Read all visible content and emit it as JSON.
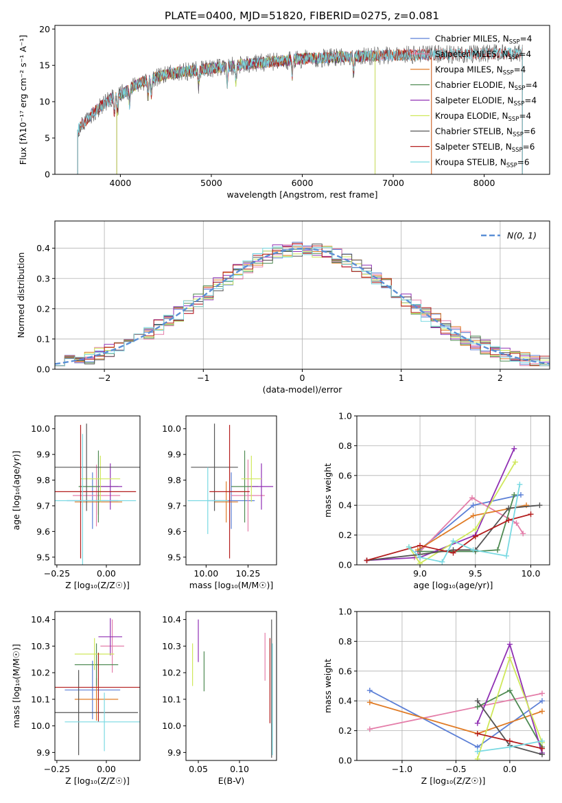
{
  "figure_title": "PLATE=0400, MJD=51820, FIBERID=0275, z=0.081",
  "colors": {
    "Chabrier MILES": "#5b7fd6",
    "Salpeter MILES": "#e47da9",
    "Kroupa MILES": "#e07b25",
    "Chabrier ELODIE": "#4e8a52",
    "Salpeter ELODIE": "#8f2fb3",
    "Kroupa ELODIE": "#cfe85a",
    "Chabrier STELIB": "#555555",
    "Salpeter STELIB": "#b31d1d",
    "Kroupa STELIB": "#79d9e2",
    "gauss": "#5b8fd6"
  },
  "chart_data": [
    {
      "id": "spectrum",
      "type": "line",
      "title": "PLATE=0400, MJD=51820, FIBERID=0275, z=0.081",
      "xlabel": "wavelength [Angstrom, rest frame]",
      "ylabel": "Flux [fλ10⁻¹⁷ erg cm⁻² s⁻¹ A⁻¹]",
      "xlim": [
        3280,
        8720
      ],
      "ylim": [
        0,
        20.5
      ],
      "xticks": [
        "4000",
        "5000",
        "6000",
        "7000",
        "8000"
      ],
      "yticks": [
        "0",
        "5",
        "10",
        "15",
        "20"
      ],
      "grid": false,
      "legend_position": "right",
      "continuum": {
        "x": [
          3520,
          3700,
          3900,
          4000,
          4200,
          4500,
          5000,
          5500,
          6000,
          6500,
          7000,
          7500,
          8000,
          8420
        ],
        "y": [
          6.0,
          8.5,
          10.5,
          11.0,
          12.5,
          13.8,
          14.6,
          15.3,
          15.9,
          16.2,
          16.4,
          16.5,
          16.6,
          16.7
        ]
      },
      "series": [
        {
          "name": "Chabrier MILES, N_SSP=4",
          "x0": 3530,
          "x1": 7420
        },
        {
          "name": "Salpeter MILES, N_SSP=4",
          "x0": 3530,
          "x1": 7420
        },
        {
          "name": "Kroupa MILES, N_SSP=4",
          "x0": 3530,
          "x1": 7420
        },
        {
          "name": "Chabrier ELODIE, N_SSP=4",
          "x0": 3960,
          "x1": 6800
        },
        {
          "name": "Salpeter ELODIE, N_SSP=4",
          "x0": 3960,
          "x1": 6800
        },
        {
          "name": "Kroupa ELODIE, N_SSP=4",
          "x0": 3960,
          "x1": 6800
        },
        {
          "name": "Chabrier STELIB, N_SSP=6",
          "x0": 3530,
          "x1": 8420
        },
        {
          "name": "Salpeter STELIB, N_SSP=6",
          "x0": 3530,
          "x1": 8420
        },
        {
          "name": "Kroupa STELIB, N_SSP=6",
          "x0": 3530,
          "x1": 8420
        }
      ]
    },
    {
      "id": "residuals",
      "type": "line",
      "xlabel": "(data-model)/error",
      "ylabel": "Normed distribution",
      "xlim": [
        -2.5,
        2.5
      ],
      "ylim": [
        0,
        0.49
      ],
      "xticks": [
        "−2",
        "−1",
        "0",
        "1",
        "2"
      ],
      "yticks": [
        "0.0",
        "0.1",
        "0.2",
        "0.3",
        "0.4"
      ],
      "grid": true,
      "legend": "N(0, 1)",
      "legend_position": "top-right",
      "bin_width": 0.1
    },
    {
      "id": "age_vs_Z",
      "type": "scatter",
      "xlabel": "Z [log₁₀(Z/Z☉)]",
      "ylabel": "age  [log₁₀(age/yr)]",
      "xlim": [
        -0.26,
        0.17
      ],
      "ylim": [
        9.47,
        10.05
      ],
      "xticks": [
        "−0.25",
        "0.00"
      ],
      "yticks": [
        "9.5",
        "9.6",
        "9.7",
        "9.8",
        "9.9",
        "10.0"
      ],
      "grid": false,
      "points": [
        {
          "x": -0.07,
          "xerr": 0.13,
          "y": 9.72,
          "yerr": 0.11,
          "series": "Chabrier MILES"
        },
        {
          "x": -0.05,
          "xerr": 0.12,
          "y": 9.74,
          "yerr": 0.12,
          "series": "Salpeter MILES"
        },
        {
          "x": -0.04,
          "xerr": 0.12,
          "y": 9.715,
          "yerr": 0.05,
          "series": "Kroupa MILES"
        },
        {
          "x": -0.04,
          "xerr": 0.1,
          "y": 9.775,
          "yerr": 0.14,
          "series": "Chabrier ELODIE"
        },
        {
          "x": 0.02,
          "xerr": 0.06,
          "y": 9.775,
          "yerr": 0.09,
          "series": "Salpeter ELODIE"
        },
        {
          "x": -0.03,
          "xerr": 0.1,
          "y": 9.805,
          "yerr": 0.09,
          "series": "Kroupa ELODIE"
        },
        {
          "x": -0.1,
          "xerr": 0.28,
          "y": 9.85,
          "yerr": 0.17,
          "series": "Chabrier STELIB"
        },
        {
          "x": -0.13,
          "xerr": 0.28,
          "y": 9.755,
          "yerr": 0.26,
          "series": "Salpeter STELIB"
        },
        {
          "x": -0.12,
          "xerr": 0.27,
          "y": 9.72,
          "yerr": 0.26,
          "series": "Kroupa STELIB"
        }
      ]
    },
    {
      "id": "age_vs_mass",
      "type": "scatter",
      "xlabel": "mass [log₁₀(M/M☉)]",
      "xlim": [
        9.88,
        10.42
      ],
      "ylim": [
        9.47,
        10.05
      ],
      "xticks": [
        "10.00",
        "10.25"
      ],
      "yticks": [
        "9.5",
        "9.6",
        "9.7",
        "9.8",
        "9.9",
        "10.0"
      ],
      "grid": false,
      "points": [
        {
          "x": 10.15,
          "xerr": 0.14,
          "y": 9.72,
          "yerr": 0.11,
          "series": "Chabrier MILES"
        },
        {
          "x": 10.25,
          "xerr": 0.1,
          "y": 9.74,
          "yerr": 0.14,
          "series": "Salpeter MILES"
        },
        {
          "x": 10.12,
          "xerr": 0.07,
          "y": 9.715,
          "yerr": 0.08,
          "series": "Kroupa MILES"
        },
        {
          "x": 10.23,
          "xerr": 0.08,
          "y": 9.775,
          "yerr": 0.14,
          "series": "Chabrier ELODIE"
        },
        {
          "x": 10.33,
          "xerr": 0.07,
          "y": 9.775,
          "yerr": 0.09,
          "series": "Salpeter ELODIE"
        },
        {
          "x": 10.27,
          "xerr": 0.06,
          "y": 9.805,
          "yerr": 0.09,
          "series": "Kroupa ELODIE"
        },
        {
          "x": 10.05,
          "xerr": 0.14,
          "y": 9.85,
          "yerr": 0.17,
          "series": "Chabrier STELIB"
        },
        {
          "x": 10.14,
          "xerr": 0.12,
          "y": 9.755,
          "yerr": 0.26,
          "series": "Salpeter STELIB"
        },
        {
          "x": 10.01,
          "xerr": 0.12,
          "y": 9.72,
          "yerr": 0.13,
          "series": "Kroupa STELIB"
        }
      ]
    },
    {
      "id": "weight_vs_age",
      "type": "line",
      "xlabel": "age  [log₁₀(age/yr)]",
      "ylabel": "mass weight",
      "xlim": [
        8.43,
        10.17
      ],
      "ylim": [
        0,
        1
      ],
      "xticks": [
        "9.0",
        "9.5",
        "10.0"
      ],
      "yticks": [
        "0.0",
        "0.2",
        "0.4",
        "0.6",
        "0.8",
        "1.0"
      ],
      "grid": true,
      "series": [
        {
          "name": "Chabrier MILES",
          "x": [
            8.98,
            9.48,
            9.91
          ],
          "y": [
            0.09,
            0.4,
            0.47
          ]
        },
        {
          "name": "Salpeter MILES",
          "x": [
            8.95,
            9.47,
            9.87,
            9.93
          ],
          "y": [
            0.05,
            0.45,
            0.28,
            0.21
          ]
        },
        {
          "name": "Kroupa MILES",
          "x": [
            8.98,
            9.48,
            9.96
          ],
          "y": [
            0.1,
            0.33,
            0.4
          ]
        },
        {
          "name": "Chabrier ELODIE",
          "x": [
            9.0,
            9.5,
            9.7,
            9.85
          ],
          "y": [
            0.09,
            0.09,
            0.1,
            0.47
          ]
        },
        {
          "name": "Salpeter ELODIE",
          "x": [
            8.52,
            9.0,
            9.5,
            9.85
          ],
          "y": [
            0.03,
            0.05,
            0.2,
            0.78
          ]
        },
        {
          "name": "Kroupa ELODIE",
          "x": [
            8.9,
            9.0,
            9.5,
            9.86
          ],
          "y": [
            0.12,
            0.01,
            0.24,
            0.69
          ]
        },
        {
          "name": "Chabrier STELIB",
          "x": [
            8.52,
            9.0,
            9.3,
            9.5,
            9.8,
            10.08
          ],
          "y": [
            0.03,
            0.07,
            0.1,
            0.1,
            0.38,
            0.4
          ]
        },
        {
          "name": "Salpeter STELIB",
          "x": [
            8.52,
            9.0,
            9.3,
            9.5,
            9.8,
            10.0
          ],
          "y": [
            0.03,
            0.13,
            0.08,
            0.19,
            0.3,
            0.34
          ]
        },
        {
          "name": "Kroupa STELIB",
          "x": [
            8.9,
            9.0,
            9.2,
            9.3,
            9.48,
            9.78,
            9.9
          ],
          "y": [
            0.12,
            0.05,
            0.02,
            0.16,
            0.1,
            0.06,
            0.54
          ]
        }
      ]
    },
    {
      "id": "mass_vs_Z",
      "type": "scatter",
      "xlabel": "Z [log₁₀(Z/Z☉)]",
      "ylabel": "mass [log₁₀(M/M☉)]",
      "xlim": [
        -0.26,
        0.17
      ],
      "ylim": [
        9.87,
        10.43
      ],
      "xticks": [
        "−0.25",
        "0.00"
      ],
      "yticks": [
        "9.9",
        "10.0",
        "10.1",
        "10.2",
        "10.3",
        "10.4"
      ],
      "grid": false,
      "points": [
        {
          "x": -0.07,
          "xerr": 0.14,
          "y": 10.135,
          "yerr": 0.11,
          "series": "Chabrier MILES"
        },
        {
          "x": 0.03,
          "xerr": 0.06,
          "y": 10.3,
          "yerr": 0.1,
          "series": "Salpeter MILES"
        },
        {
          "x": -0.05,
          "xerr": 0.11,
          "y": 10.1,
          "yerr": 0.08,
          "series": "Kroupa MILES"
        },
        {
          "x": -0.05,
          "xerr": 0.11,
          "y": 10.23,
          "yerr": 0.08,
          "series": "Chabrier ELODIE"
        },
        {
          "x": 0.02,
          "xerr": 0.06,
          "y": 10.335,
          "yerr": 0.07,
          "series": "Salpeter ELODIE"
        },
        {
          "x": -0.06,
          "xerr": 0.1,
          "y": 10.27,
          "yerr": 0.06,
          "series": "Kroupa ELODIE"
        },
        {
          "x": -0.14,
          "xerr": 0.3,
          "y": 10.05,
          "yerr": 0.16,
          "series": "Chabrier STELIB"
        },
        {
          "x": -0.04,
          "xerr": 0.25,
          "y": 10.145,
          "yerr": 0.13,
          "series": "Salpeter STELIB"
        },
        {
          "x": -0.01,
          "xerr": 0.2,
          "y": 10.015,
          "yerr": 0.11,
          "series": "Kroupa STELIB"
        }
      ]
    },
    {
      "id": "mass_vs_EBV",
      "type": "scatter",
      "xlabel": "E(B-V)",
      "xlim": [
        0.035,
        0.145
      ],
      "ylim": [
        9.87,
        10.43
      ],
      "xticks": [
        "0.05",
        "0.10"
      ],
      "yticks": [
        "9.9",
        "10.0",
        "10.1",
        "10.2",
        "10.3",
        "10.4"
      ],
      "grid": false,
      "points": [
        {
          "x": 0.131,
          "y": 10.26,
          "yerr": 0.09,
          "series": "Salpeter MILES"
        },
        {
          "x": 0.057,
          "y": 10.205,
          "yerr": 0.075,
          "series": "Chabrier ELODIE"
        },
        {
          "x": 0.05,
          "y": 10.32,
          "yerr": 0.08,
          "series": "Salpeter ELODIE"
        },
        {
          "x": 0.043,
          "y": 10.23,
          "yerr": 0.08,
          "series": "Kroupa ELODIE"
        },
        {
          "x": 0.139,
          "y": 10.14,
          "yerr": 0.26,
          "series": "Chabrier STELIB"
        },
        {
          "x": 0.137,
          "y": 10.17,
          "yerr": 0.16,
          "series": "Salpeter STELIB"
        },
        {
          "x": 0.14,
          "y": 10.1,
          "yerr": 0.21,
          "series": "Kroupa STELIB"
        }
      ]
    },
    {
      "id": "weight_vs_Z",
      "type": "line",
      "xlabel": "Z [log₁₀(Z/Z☉)]",
      "ylabel": "mass weight",
      "xlim": [
        -1.42,
        0.37
      ],
      "ylim": [
        0,
        1
      ],
      "xticks": [
        "−1.0",
        "−0.5",
        "0.0"
      ],
      "yticks": [
        "0.0",
        "0.2",
        "0.4",
        "0.6",
        "0.8",
        "1.0"
      ],
      "grid": true,
      "series": [
        {
          "name": "Chabrier MILES",
          "x": [
            -1.3,
            -0.3,
            0.3
          ],
          "y": [
            0.47,
            0.09,
            0.4
          ]
        },
        {
          "name": "Salpeter MILES",
          "x": [
            -1.3,
            0.3
          ],
          "y": [
            0.21,
            0.45
          ]
        },
        {
          "name": "Kroupa MILES",
          "x": [
            -1.3,
            -0.3,
            0.3
          ],
          "y": [
            0.39,
            0.18,
            0.33
          ]
        },
        {
          "name": "Chabrier ELODIE",
          "x": [
            -0.3,
            0.0,
            0.3
          ],
          "y": [
            0.36,
            0.47,
            0.09
          ]
        },
        {
          "name": "Salpeter ELODIE",
          "x": [
            -0.3,
            0.0,
            0.3
          ],
          "y": [
            0.25,
            0.78,
            0.05
          ]
        },
        {
          "name": "Kroupa ELODIE",
          "x": [
            -0.3,
            0.0,
            0.3
          ],
          "y": [
            0.01,
            0.69,
            0.12
          ]
        },
        {
          "name": "Chabrier STELIB",
          "x": [
            -0.3,
            0.0,
            0.3
          ],
          "y": [
            0.4,
            0.1,
            0.04
          ]
        },
        {
          "name": "Salpeter STELIB",
          "x": [
            -0.3,
            0.0,
            0.3
          ],
          "y": [
            0.18,
            0.13,
            0.08
          ]
        },
        {
          "name": "Kroupa STELIB",
          "x": [
            -0.3,
            0.0,
            0.3
          ],
          "y": [
            0.06,
            0.09,
            0.13
          ]
        }
      ]
    }
  ]
}
